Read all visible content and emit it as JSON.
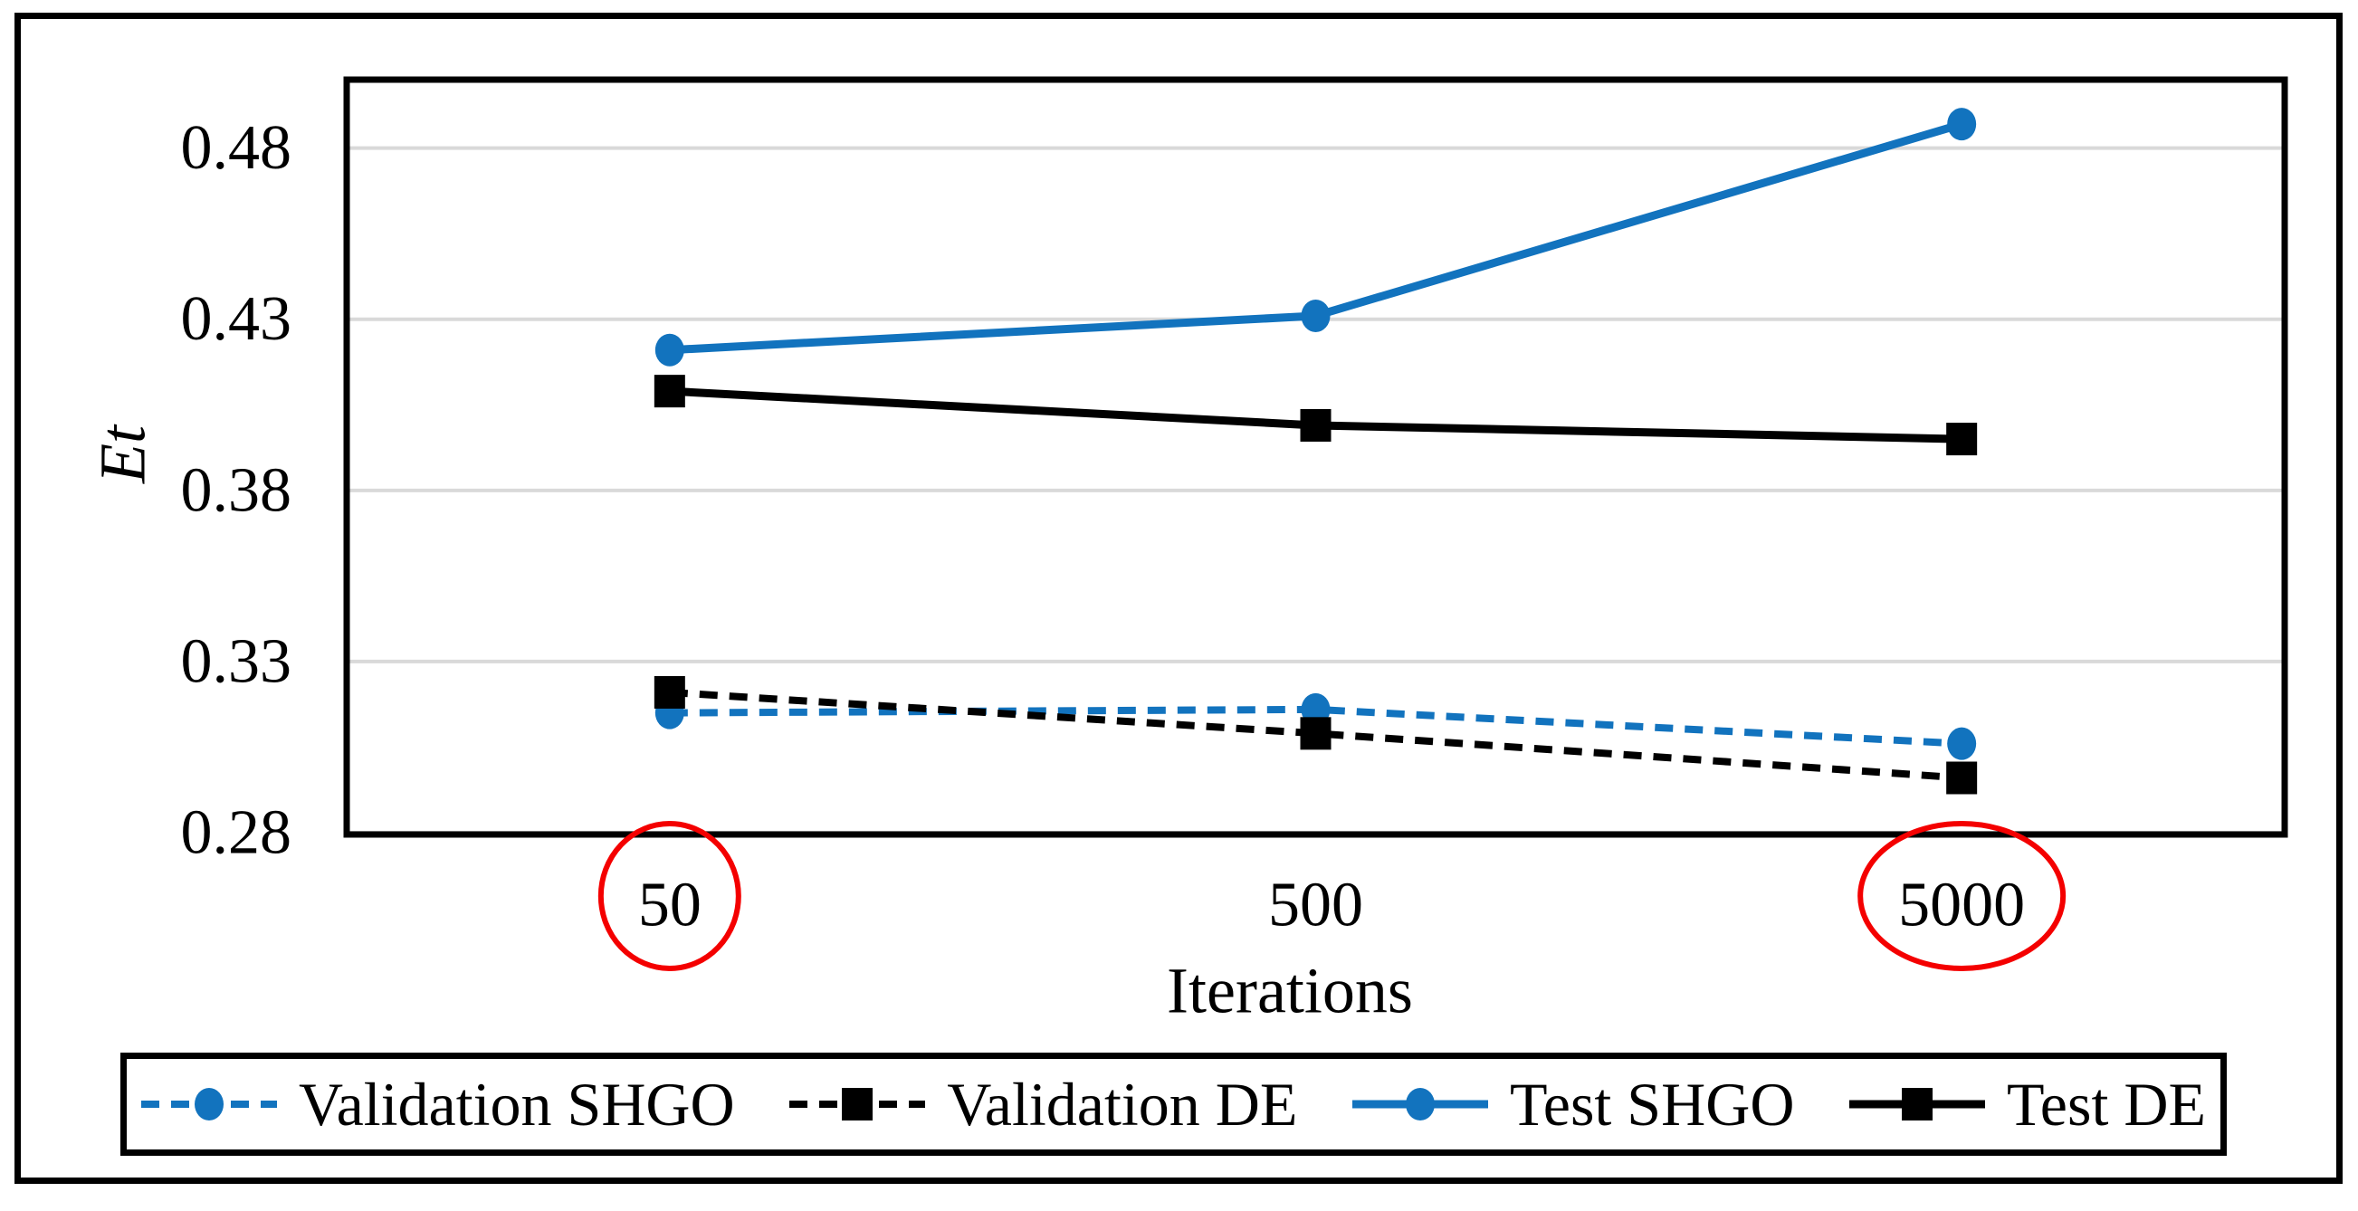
{
  "chart_data": {
    "type": "line",
    "title": "",
    "xlabel": "Iterations",
    "ylabel": "Et",
    "categories": [
      "50",
      "500",
      "5000"
    ],
    "yticks": [
      "0.48",
      "0.43",
      "0.38",
      "0.33",
      "0.28"
    ],
    "ylim": [
      0.28,
      0.5
    ],
    "grid": true,
    "legend_position": "bottom",
    "circled_xticks": [
      "50",
      "5000"
    ],
    "colors": {
      "blue": "#1273BE",
      "black": "#000000",
      "grid": "#D9D9D9",
      "annotation": "#F40000",
      "border": "#000000"
    },
    "series": [
      {
        "name": "Validation SHGO",
        "color": "#1273BE",
        "style": "dashed",
        "marker": "circle",
        "values": [
          0.315,
          0.316,
          0.306
        ]
      },
      {
        "name": "Validation DE",
        "color": "#000000",
        "style": "dashed",
        "marker": "square",
        "values": [
          0.321,
          0.309,
          0.296
        ]
      },
      {
        "name": "Test SHGO",
        "color": "#1273BE",
        "style": "solid",
        "marker": "circle",
        "values": [
          0.421,
          0.431,
          0.487
        ]
      },
      {
        "name": "Test DE",
        "color": "#000000",
        "style": "solid",
        "marker": "square",
        "values": [
          0.409,
          0.399,
          0.395
        ]
      }
    ]
  }
}
